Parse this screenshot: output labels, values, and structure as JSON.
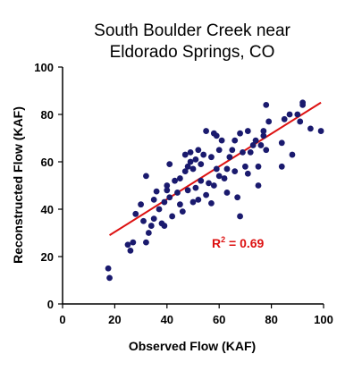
{
  "chart_data": {
    "type": "scatter",
    "title": [
      "South Boulder Creek near",
      "Eldorado Springs, CO"
    ],
    "xlabel": "Observed Flow (KAF)",
    "ylabel": "Reconstructed Flow (KAF)",
    "xlim": [
      0,
      100
    ],
    "ylim": [
      0,
      100
    ],
    "xticks": [
      0,
      20,
      40,
      60,
      80,
      100
    ],
    "yticks": [
      0,
      20,
      40,
      60,
      80,
      100
    ],
    "grid": false,
    "legend": "none",
    "point_color": "#1a1a6e",
    "line_color": "#dd1111",
    "annotation_color": "#dd1111",
    "r_squared": {
      "base": "R",
      "superscript": "2",
      "text": " = 0.69"
    },
    "trend_line": {
      "x": [
        18,
        99
      ],
      "y": [
        29,
        85
      ]
    },
    "series": [
      {
        "points": [
          [
            17.5,
            15
          ],
          [
            18,
            11
          ],
          [
            25,
            25
          ],
          [
            26,
            22.5
          ],
          [
            27,
            26
          ],
          [
            28,
            38
          ],
          [
            30,
            42
          ],
          [
            31,
            35
          ],
          [
            32,
            26
          ],
          [
            32,
            54
          ],
          [
            33,
            30
          ],
          [
            34,
            33
          ],
          [
            35,
            36
          ],
          [
            35,
            44
          ],
          [
            36,
            47.5
          ],
          [
            37,
            40
          ],
          [
            38,
            34
          ],
          [
            39,
            33
          ],
          [
            39,
            43
          ],
          [
            40,
            48
          ],
          [
            40,
            50
          ],
          [
            41,
            59
          ],
          [
            41,
            45
          ],
          [
            42,
            37
          ],
          [
            43,
            52
          ],
          [
            44,
            47
          ],
          [
            45,
            42
          ],
          [
            45,
            53
          ],
          [
            46,
            39
          ],
          [
            47,
            56
          ],
          [
            47,
            63
          ],
          [
            48,
            48
          ],
          [
            48,
            58
          ],
          [
            49,
            60
          ],
          [
            49,
            64
          ],
          [
            50,
            43
          ],
          [
            50,
            57
          ],
          [
            51,
            49
          ],
          [
            51,
            61
          ],
          [
            52,
            44
          ],
          [
            52,
            65
          ],
          [
            53,
            52
          ],
          [
            53,
            59
          ],
          [
            54,
            63
          ],
          [
            55,
            46
          ],
          [
            55,
            73
          ],
          [
            56,
            51
          ],
          [
            57,
            42.5
          ],
          [
            57,
            62
          ],
          [
            58,
            50
          ],
          [
            58,
            72
          ],
          [
            59,
            57
          ],
          [
            59,
            71
          ],
          [
            60,
            54
          ],
          [
            60,
            65
          ],
          [
            61,
            69
          ],
          [
            62,
            53
          ],
          [
            63,
            47
          ],
          [
            63,
            57
          ],
          [
            64,
            62
          ],
          [
            65,
            65
          ],
          [
            66,
            56
          ],
          [
            66,
            69
          ],
          [
            67,
            45
          ],
          [
            68,
            37
          ],
          [
            68,
            72
          ],
          [
            69,
            64
          ],
          [
            70,
            58
          ],
          [
            71,
            55
          ],
          [
            71,
            73
          ],
          [
            72,
            64
          ],
          [
            73,
            67
          ],
          [
            74,
            69
          ],
          [
            75,
            50
          ],
          [
            75,
            58
          ],
          [
            76,
            67
          ],
          [
            77,
            71
          ],
          [
            77,
            73
          ],
          [
            78,
            65
          ],
          [
            78,
            84
          ],
          [
            79,
            77
          ],
          [
            84,
            58
          ],
          [
            84,
            68
          ],
          [
            85,
            78
          ],
          [
            87,
            80
          ],
          [
            88,
            63
          ],
          [
            90,
            80
          ],
          [
            91,
            77
          ],
          [
            92,
            84
          ],
          [
            92,
            85
          ],
          [
            95,
            74
          ],
          [
            99,
            73
          ]
        ]
      }
    ]
  }
}
